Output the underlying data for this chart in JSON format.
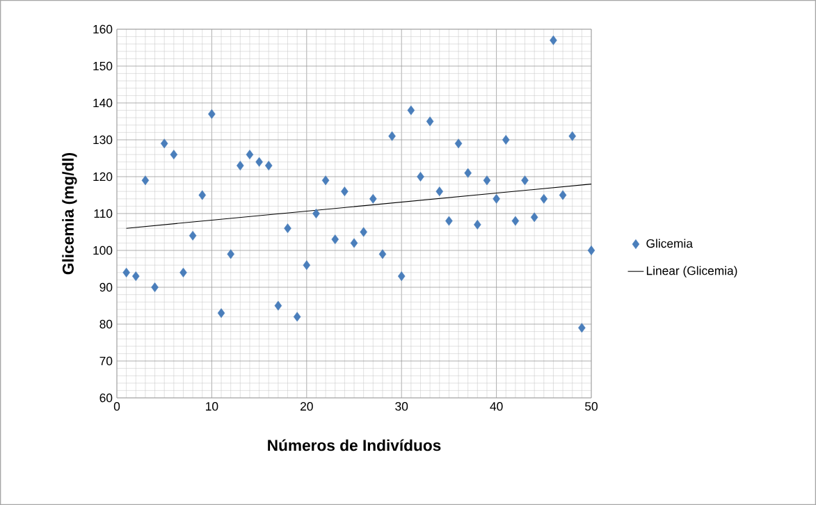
{
  "chart_data": {
    "type": "scatter",
    "xlabel": "Números de Indivíduos",
    "ylabel": "Glicemia (mg/dl)",
    "xlim": [
      0,
      50
    ],
    "xticks": [
      0,
      10,
      20,
      30,
      40,
      50
    ],
    "ylim": [
      60,
      160
    ],
    "yticks": [
      60,
      70,
      80,
      90,
      100,
      110,
      120,
      130,
      140,
      150,
      160
    ],
    "grid": true,
    "legend": "right",
    "series": [
      {
        "name": "Glicemia",
        "marker": "diamond",
        "color": "#4a7ebb",
        "x": [
          1,
          2,
          3,
          4,
          5,
          6,
          7,
          8,
          9,
          10,
          11,
          12,
          13,
          14,
          15,
          16,
          17,
          18,
          19,
          20,
          21,
          22,
          23,
          24,
          25,
          26,
          27,
          28,
          29,
          30,
          31,
          32,
          33,
          34,
          35,
          36,
          37,
          38,
          39,
          40,
          41,
          42,
          43,
          44,
          45,
          46,
          47,
          48,
          49,
          50
        ],
        "values": [
          94,
          93,
          119,
          90,
          129,
          126,
          94,
          104,
          115,
          137,
          83,
          99,
          123,
          126,
          124,
          123,
          85,
          106,
          82,
          96,
          110,
          119,
          103,
          116,
          102,
          105,
          114,
          99,
          131,
          93,
          138,
          120,
          135,
          116,
          108,
          129,
          121,
          107,
          119,
          114,
          130,
          108,
          119,
          109,
          114,
          157,
          115,
          131,
          79,
          100
        ]
      },
      {
        "name": "Linear (Glicemia)",
        "type": "line",
        "marker": "none",
        "color": "#000000",
        "x": [
          1,
          50
        ],
        "values": [
          106,
          118
        ]
      }
    ]
  }
}
